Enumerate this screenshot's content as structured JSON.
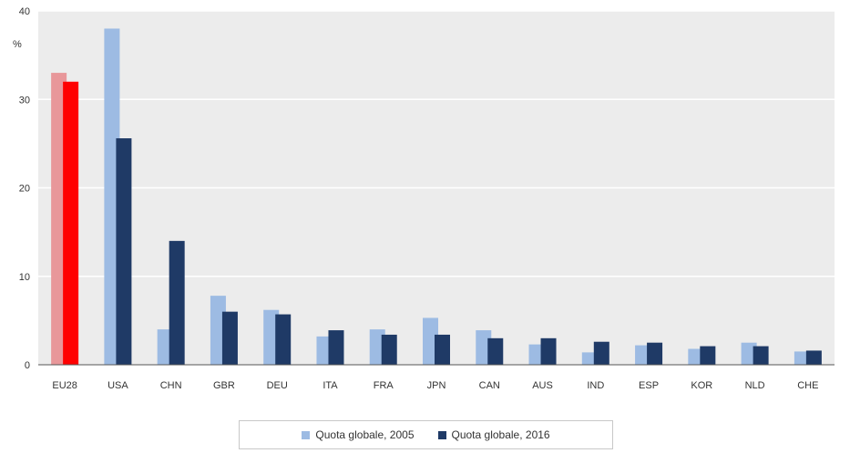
{
  "chart_data": {
    "type": "bar",
    "categories": [
      "EU28",
      "USA",
      "CHN",
      "GBR",
      "DEU",
      "ITA",
      "FRA",
      "JPN",
      "CAN",
      "AUS",
      "IND",
      "ESP",
      "KOR",
      "NLD",
      "CHE"
    ],
    "series": [
      {
        "name": "Quota globale, 2005",
        "color": "#9dbbe3",
        "highlight_color": "#e8979a",
        "values": [
          33.0,
          38.0,
          4.0,
          7.8,
          6.2,
          3.2,
          4.0,
          5.3,
          3.9,
          2.3,
          1.4,
          2.2,
          1.8,
          2.5,
          1.5
        ]
      },
      {
        "name": "Quota globale, 2016",
        "color": "#1f3a66",
        "highlight_color": "#ff0000",
        "values": [
          32.0,
          25.6,
          14.0,
          6.0,
          5.7,
          3.9,
          3.4,
          3.4,
          3.0,
          3.0,
          2.6,
          2.5,
          2.1,
          2.1,
          1.6
        ]
      }
    ],
    "highlight_category": "EU28",
    "unit_label": "%",
    "ylim": [
      0,
      40
    ],
    "yticks": [
      0,
      10,
      20,
      30,
      40
    ],
    "grid": true,
    "plot_background": "#ececec",
    "legend_position": "bottom-center"
  }
}
